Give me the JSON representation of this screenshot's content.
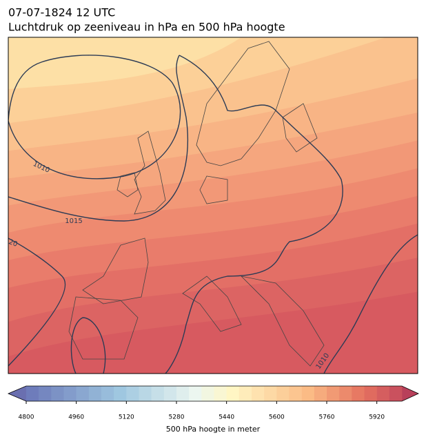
{
  "header": {
    "date": "07-07-1824 12 UTC",
    "title": "Luchtdruk op zeeniveau in hPa en 500 hPa hoogte"
  },
  "map": {
    "contour_labels": [
      "1010",
      "1015",
      "20",
      "1010"
    ]
  },
  "colorbar": {
    "lim": [
      4800,
      6000
    ],
    "step": 40,
    "ticks": [
      4800,
      4960,
      5120,
      5280,
      5440,
      5600,
      5760,
      5920
    ],
    "label": "500 hPa hoogte in meter"
  }
}
